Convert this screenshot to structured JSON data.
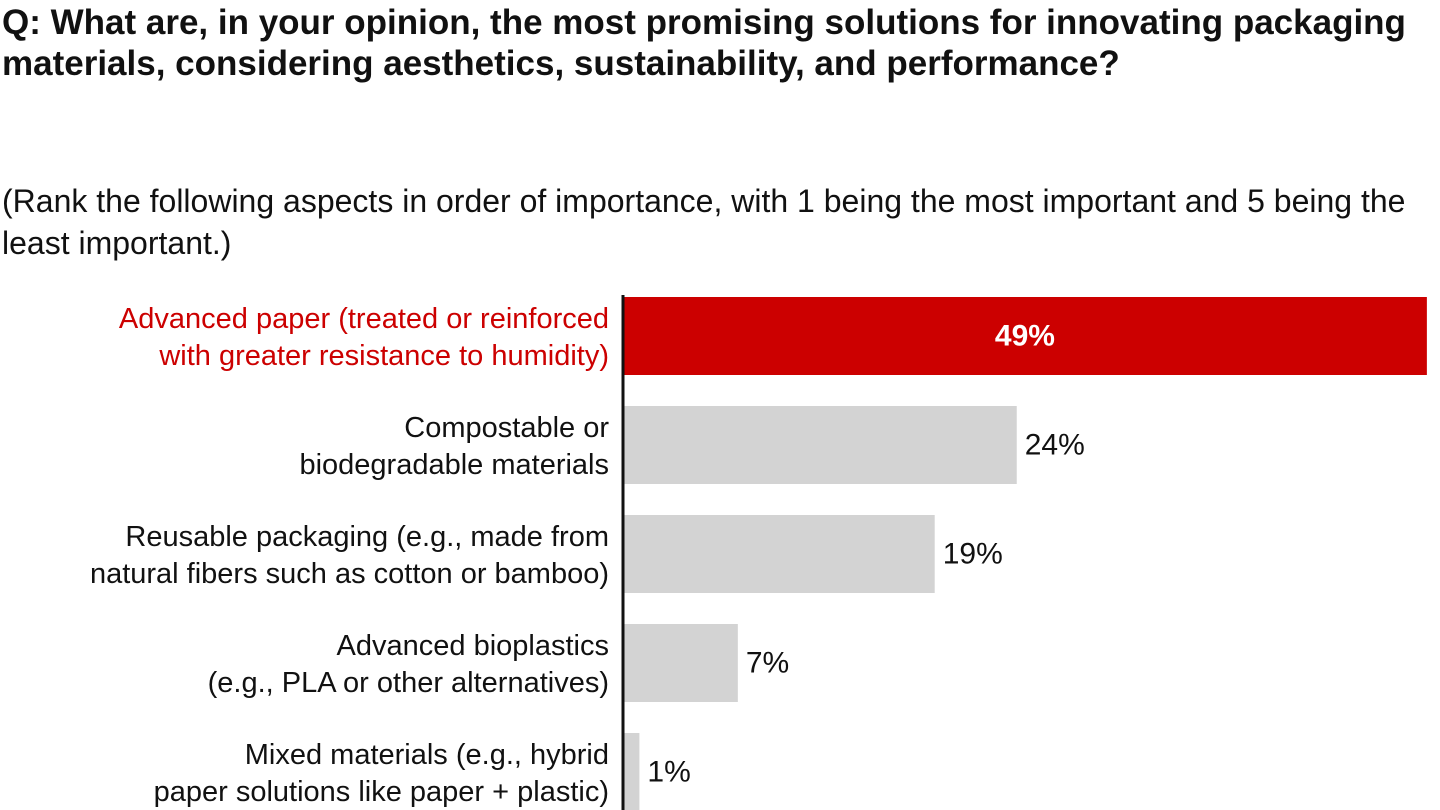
{
  "chart_data": {
    "type": "bar",
    "orientation": "horizontal",
    "title": "Q: What are, in your opinion, the most promising solutions for innovating packaging materials, considering aesthetics, sustainability, and performance?",
    "subtitle": "(Rank the following aspects in order of importance, with 1 being the most important and 5 being the least important.)",
    "categories": [
      [
        "Advanced paper (treated or reinforced",
        "with greater resistance to humidity)"
      ],
      [
        "Compostable or",
        "biodegradable materials"
      ],
      [
        "Reusable packaging (e.g., made from",
        "natural fibers such as cotton or bamboo)"
      ],
      [
        "Advanced bioplastics",
        "(e.g., PLA or other alternatives)"
      ],
      [
        "Mixed materials (e.g., hybrid",
        "paper solutions like paper + plastic)"
      ]
    ],
    "values": [
      49,
      24,
      19,
      7,
      1
    ],
    "value_labels": [
      "49%",
      "24%",
      "19%",
      "7%",
      "1%"
    ],
    "highlight_index": 0,
    "xlim": [
      0,
      50
    ],
    "grid": false,
    "colors": {
      "highlight": "#cc0000",
      "bar": "#d3d3d3",
      "axis": "#111111",
      "text": "#111111",
      "highlight_value_text": "#ffffff"
    }
  }
}
